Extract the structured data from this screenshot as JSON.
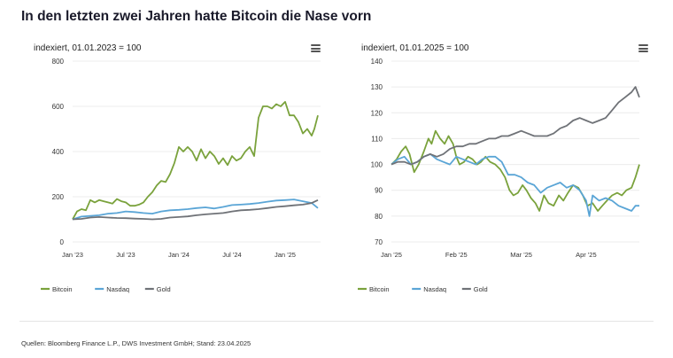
{
  "title": "In den letzten zwei Jahren hatte Bitcoin die Nase vorn",
  "source": "Quellen: Bloomberg Finance L.P., DWS Investment GmbH; Stand: 23.04.2025",
  "chart_data": [
    {
      "type": "line",
      "subtitle": "indexiert, 01.01.2023 = 100",
      "x_ticks": [
        "Jan '23",
        "Jul '23",
        "Jan '24",
        "Jul '24",
        "Jan '25"
      ],
      "x_range": [
        0,
        28
      ],
      "ylim": [
        0,
        800
      ],
      "y_ticks": [
        0,
        200,
        400,
        600,
        800
      ],
      "grid": true,
      "legend_position": "bottom-left",
      "series": [
        {
          "name": "Bitcoin",
          "color": "#7aa23c",
          "x": [
            0,
            0.5,
            1,
            1.5,
            2,
            2.5,
            3,
            3.5,
            4,
            4.5,
            5,
            5.5,
            6,
            6.5,
            7,
            7.5,
            8,
            8.5,
            9,
            9.5,
            10,
            10.5,
            11,
            11.5,
            12,
            12.5,
            13,
            13.5,
            14,
            14.5,
            15,
            15.5,
            16,
            16.5,
            17,
            17.5,
            18,
            18.5,
            19,
            19.5,
            20,
            20.5,
            21,
            21.5,
            22,
            22.5,
            23,
            23.5,
            24,
            24.5,
            25,
            25.5,
            26,
            26.5,
            27,
            27.3,
            27.7
          ],
          "values": [
            100,
            135,
            145,
            140,
            185,
            175,
            185,
            180,
            175,
            170,
            190,
            180,
            175,
            160,
            160,
            165,
            175,
            200,
            220,
            250,
            270,
            265,
            300,
            350,
            420,
            400,
            420,
            400,
            360,
            410,
            370,
            400,
            380,
            345,
            370,
            340,
            380,
            360,
            370,
            400,
            420,
            380,
            550,
            600,
            600,
            590,
            610,
            600,
            620,
            560,
            560,
            530,
            480,
            500,
            470,
            500,
            560
          ]
        },
        {
          "name": "Nasdaq",
          "color": "#5aa5d6",
          "x": [
            0,
            1,
            2,
            3,
            4,
            5,
            6,
            7,
            8,
            9,
            10,
            11,
            12,
            13,
            14,
            15,
            16,
            17,
            18,
            19,
            20,
            21,
            22,
            23,
            24,
            25,
            26,
            27,
            27.7
          ],
          "values": [
            100,
            112,
            115,
            118,
            125,
            128,
            135,
            132,
            128,
            125,
            135,
            140,
            142,
            145,
            150,
            153,
            148,
            155,
            163,
            165,
            168,
            172,
            178,
            183,
            185,
            188,
            180,
            172,
            150
          ]
        },
        {
          "name": "Gold",
          "color": "#6f7277",
          "x": [
            0,
            1,
            2,
            3,
            4,
            5,
            6,
            7,
            8,
            9,
            10,
            11,
            12,
            13,
            14,
            15,
            16,
            17,
            18,
            19,
            20,
            21,
            22,
            23,
            24,
            25,
            26,
            27,
            27.7
          ],
          "values": [
            100,
            102,
            108,
            110,
            108,
            106,
            105,
            103,
            102,
            100,
            102,
            108,
            110,
            113,
            118,
            122,
            125,
            128,
            135,
            140,
            142,
            145,
            150,
            155,
            158,
            162,
            165,
            172,
            185
          ]
        }
      ]
    },
    {
      "type": "line",
      "subtitle": "indexiert, 01.01.2025 = 100",
      "x_ticks": [
        "Jan '25",
        "Feb '25",
        "Mar '25",
        "Apr '25"
      ],
      "x_range": [
        0,
        3.82
      ],
      "ylim": [
        70,
        140
      ],
      "y_ticks": [
        70,
        80,
        90,
        100,
        110,
        120,
        130,
        140
      ],
      "grid": true,
      "legend_position": "bottom-left",
      "series": [
        {
          "name": "Bitcoin",
          "color": "#7aa23c",
          "x": [
            0,
            0.08,
            0.15,
            0.22,
            0.28,
            0.35,
            0.42,
            0.5,
            0.57,
            0.62,
            0.68,
            0.75,
            0.82,
            0.88,
            0.95,
            1.0,
            1.05,
            1.12,
            1.18,
            1.25,
            1.32,
            1.38,
            1.45,
            1.52,
            1.6,
            1.68,
            1.75,
            1.82,
            1.88,
            1.95,
            2.02,
            2.08,
            2.15,
            2.22,
            2.28,
            2.35,
            2.42,
            2.5,
            2.58,
            2.65,
            2.72,
            2.8,
            2.88,
            2.95,
            3.02,
            3.1,
            3.18,
            3.25,
            3.32,
            3.4,
            3.48,
            3.55,
            3.62,
            3.7,
            3.76,
            3.82
          ],
          "values": [
            100,
            102,
            105,
            107,
            104,
            97,
            100,
            105,
            110,
            108,
            113,
            110,
            108,
            111,
            108,
            103,
            100,
            101,
            103,
            102,
            100,
            101,
            103,
            101,
            100,
            98,
            95,
            90,
            88,
            89,
            92,
            90,
            87,
            85,
            82,
            88,
            85,
            84,
            88,
            86,
            89,
            92,
            91,
            88,
            84,
            85,
            82,
            84,
            86,
            88,
            89,
            88,
            90,
            91,
            95,
            100
          ]
        },
        {
          "name": "Nasdaq",
          "color": "#5aa5d6",
          "x": [
            0,
            0.1,
            0.2,
            0.3,
            0.4,
            0.5,
            0.6,
            0.7,
            0.8,
            0.9,
            1.0,
            1.1,
            1.2,
            1.3,
            1.4,
            1.5,
            1.6,
            1.7,
            1.8,
            1.9,
            2.0,
            2.1,
            2.2,
            2.3,
            2.4,
            2.5,
            2.6,
            2.7,
            2.8,
            2.9,
            3.0,
            3.05,
            3.1,
            3.2,
            3.3,
            3.4,
            3.5,
            3.6,
            3.7,
            3.76,
            3.82
          ],
          "values": [
            100,
            102,
            103,
            100,
            101,
            103,
            104,
            102,
            101,
            100,
            103,
            102,
            101,
            100,
            102,
            103,
            103,
            101,
            96,
            96,
            95,
            93,
            92,
            89,
            91,
            92,
            93,
            91,
            92,
            90,
            86,
            80,
            88,
            86,
            87,
            86,
            84,
            83,
            82,
            84,
            84
          ]
        },
        {
          "name": "Gold",
          "color": "#6f7277",
          "x": [
            0,
            0.1,
            0.2,
            0.3,
            0.4,
            0.5,
            0.6,
            0.7,
            0.8,
            0.9,
            1.0,
            1.1,
            1.2,
            1.3,
            1.4,
            1.5,
            1.6,
            1.7,
            1.8,
            1.9,
            2.0,
            2.1,
            2.2,
            2.3,
            2.4,
            2.5,
            2.6,
            2.7,
            2.8,
            2.9,
            3.0,
            3.1,
            3.2,
            3.3,
            3.4,
            3.5,
            3.6,
            3.7,
            3.76,
            3.82
          ],
          "values": [
            100,
            101,
            101,
            100,
            101,
            103,
            104,
            103,
            104,
            106,
            107,
            107,
            108,
            108,
            109,
            110,
            110,
            111,
            111,
            112,
            113,
            112,
            111,
            111,
            111,
            112,
            114,
            115,
            117,
            118,
            117,
            116,
            117,
            118,
            121,
            124,
            126,
            128,
            130,
            126
          ]
        }
      ]
    }
  ]
}
